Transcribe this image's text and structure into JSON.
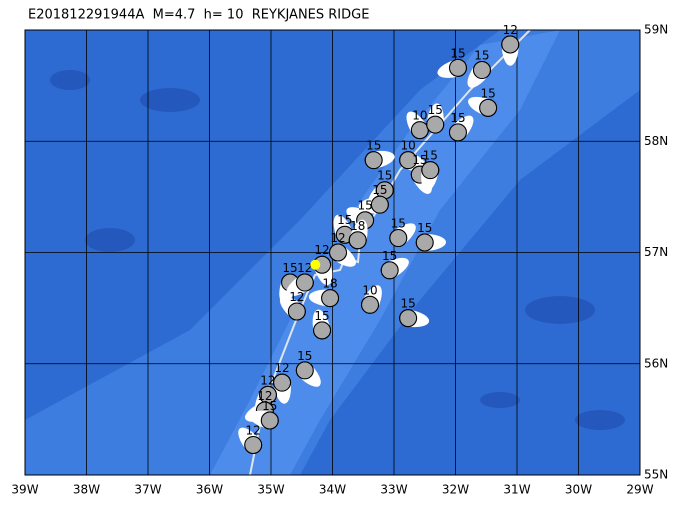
{
  "map": {
    "title": "E201812291944A  M=4.7  h= 10  REYKJANES RIDGE",
    "lonlim": [
      -39,
      -29
    ],
    "latlim": [
      55,
      59
    ],
    "lonticks": [
      {
        "value": -39,
        "label": "39W"
      },
      {
        "value": -38,
        "label": "38W"
      },
      {
        "value": -37,
        "label": "37W"
      },
      {
        "value": -36,
        "label": "36W"
      },
      {
        "value": -35,
        "label": "35W"
      },
      {
        "value": -34,
        "label": "34W"
      },
      {
        "value": -33,
        "label": "33W"
      },
      {
        "value": -32,
        "label": "32W"
      },
      {
        "value": -31,
        "label": "31W"
      },
      {
        "value": -30,
        "label": "30W"
      },
      {
        "value": -29,
        "label": "29W"
      }
    ],
    "latticks": [
      {
        "value": 55,
        "label": "55N"
      },
      {
        "value": 56,
        "label": "56N"
      },
      {
        "value": 57,
        "label": "57N"
      },
      {
        "value": 58,
        "label": "58N"
      },
      {
        "value": 59,
        "label": "59N"
      }
    ],
    "events": [
      {
        "lon": -31.11,
        "lat": 58.87,
        "depth": 12
      },
      {
        "lon": -31.57,
        "lat": 58.64,
        "depth": 15
      },
      {
        "lon": -31.96,
        "lat": 58.66,
        "depth": 15
      },
      {
        "lon": -31.47,
        "lat": 58.3,
        "depth": 15
      },
      {
        "lon": -32.58,
        "lat": 58.1,
        "depth": 10
      },
      {
        "lon": -32.33,
        "lat": 58.15,
        "depth": 15
      },
      {
        "lon": -31.96,
        "lat": 58.08,
        "depth": 15
      },
      {
        "lon": -33.33,
        "lat": 57.83,
        "depth": 15
      },
      {
        "lon": -32.77,
        "lat": 57.83,
        "depth": 10
      },
      {
        "lon": -32.58,
        "lat": 57.7,
        "depth": 15
      },
      {
        "lon": -32.41,
        "lat": 57.74,
        "depth": 15
      },
      {
        "lon": -33.15,
        "lat": 57.56,
        "depth": 15
      },
      {
        "lon": -33.23,
        "lat": 57.43,
        "depth": 15
      },
      {
        "lon": -33.47,
        "lat": 57.29,
        "depth": 15
      },
      {
        "lon": -33.8,
        "lat": 57.16,
        "depth": 15
      },
      {
        "lon": -33.59,
        "lat": 57.11,
        "depth": 18
      },
      {
        "lon": -32.93,
        "lat": 57.13,
        "depth": 15
      },
      {
        "lon": -32.5,
        "lat": 57.09,
        "depth": 15
      },
      {
        "lon": -33.91,
        "lat": 57.0,
        "depth": 12
      },
      {
        "lon": -34.17,
        "lat": 56.89,
        "depth": 12
      },
      {
        "lon": -34.69,
        "lat": 56.73,
        "depth": 15
      },
      {
        "lon": -34.45,
        "lat": 56.73,
        "depth": 12
      },
      {
        "lon": -34.04,
        "lat": 56.59,
        "depth": 18
      },
      {
        "lon": -34.58,
        "lat": 56.47,
        "depth": 12
      },
      {
        "lon": -34.17,
        "lat": 56.3,
        "depth": 15
      },
      {
        "lon": -33.39,
        "lat": 56.53,
        "depth": 10
      },
      {
        "lon": -33.07,
        "lat": 56.84,
        "depth": 15
      },
      {
        "lon": -32.77,
        "lat": 56.41,
        "depth": 15
      },
      {
        "lon": -34.45,
        "lat": 55.94,
        "depth": 15
      },
      {
        "lon": -34.82,
        "lat": 55.83,
        "depth": 12
      },
      {
        "lon": -35.05,
        "lat": 55.72,
        "depth": 12
      },
      {
        "lon": -35.1,
        "lat": 55.58,
        "depth": 12
      },
      {
        "lon": -35.02,
        "lat": 55.49,
        "depth": 15
      },
      {
        "lon": -35.29,
        "lat": 55.27,
        "depth": 12
      }
    ],
    "epicenter": {
      "lon": -34.28,
      "lat": 56.89
    }
  }
}
